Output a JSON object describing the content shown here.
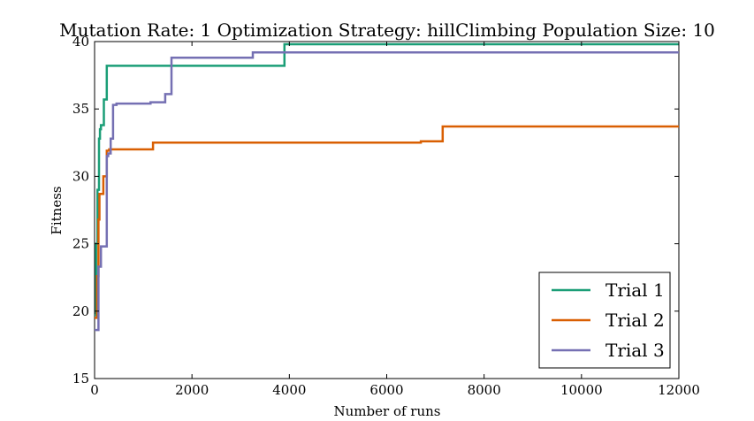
{
  "chart_data": {
    "type": "line",
    "title": "Mutation Rate: 1 Optimization Strategy: hillClimbing Population Size: 10",
    "xlabel": "Number of runs",
    "ylabel": "Fitness",
    "xlim": [
      0,
      12000
    ],
    "ylim": [
      15,
      40
    ],
    "xticks": [
      "0",
      "2000",
      "4000",
      "6000",
      "8000",
      "10000",
      "12000"
    ],
    "yticks": [
      "15",
      "20",
      "25",
      "30",
      "35",
      "40"
    ],
    "grid": false,
    "legend_position": "lower-right",
    "series": [
      {
        "name": "Trial 1",
        "color": "#1b9e77",
        "x": [
          0,
          30,
          60,
          90,
          110,
          130,
          190,
          250,
          3900,
          12000
        ],
        "y": [
          19.7,
          25.0,
          29.0,
          32.8,
          33.5,
          33.8,
          35.7,
          38.2,
          39.8,
          39.8
        ]
      },
      {
        "name": "Trial 2",
        "color": "#d95f02",
        "x": [
          0,
          50,
          80,
          100,
          180,
          250,
          300,
          1200,
          6700,
          7150,
          12000
        ],
        "y": [
          19.5,
          22.6,
          26.8,
          28.7,
          30.0,
          31.9,
          32.0,
          32.5,
          32.6,
          33.7,
          33.7
        ]
      },
      {
        "name": "Trial 3",
        "color": "#7570b3",
        "x": [
          0,
          80,
          130,
          250,
          280,
          330,
          380,
          450,
          550,
          1150,
          1450,
          1580,
          3250,
          12000
        ],
        "y": [
          18.6,
          23.3,
          24.8,
          31.5,
          31.7,
          32.8,
          35.3,
          35.4,
          35.4,
          35.5,
          36.1,
          38.8,
          39.2,
          39.2
        ]
      }
    ]
  }
}
